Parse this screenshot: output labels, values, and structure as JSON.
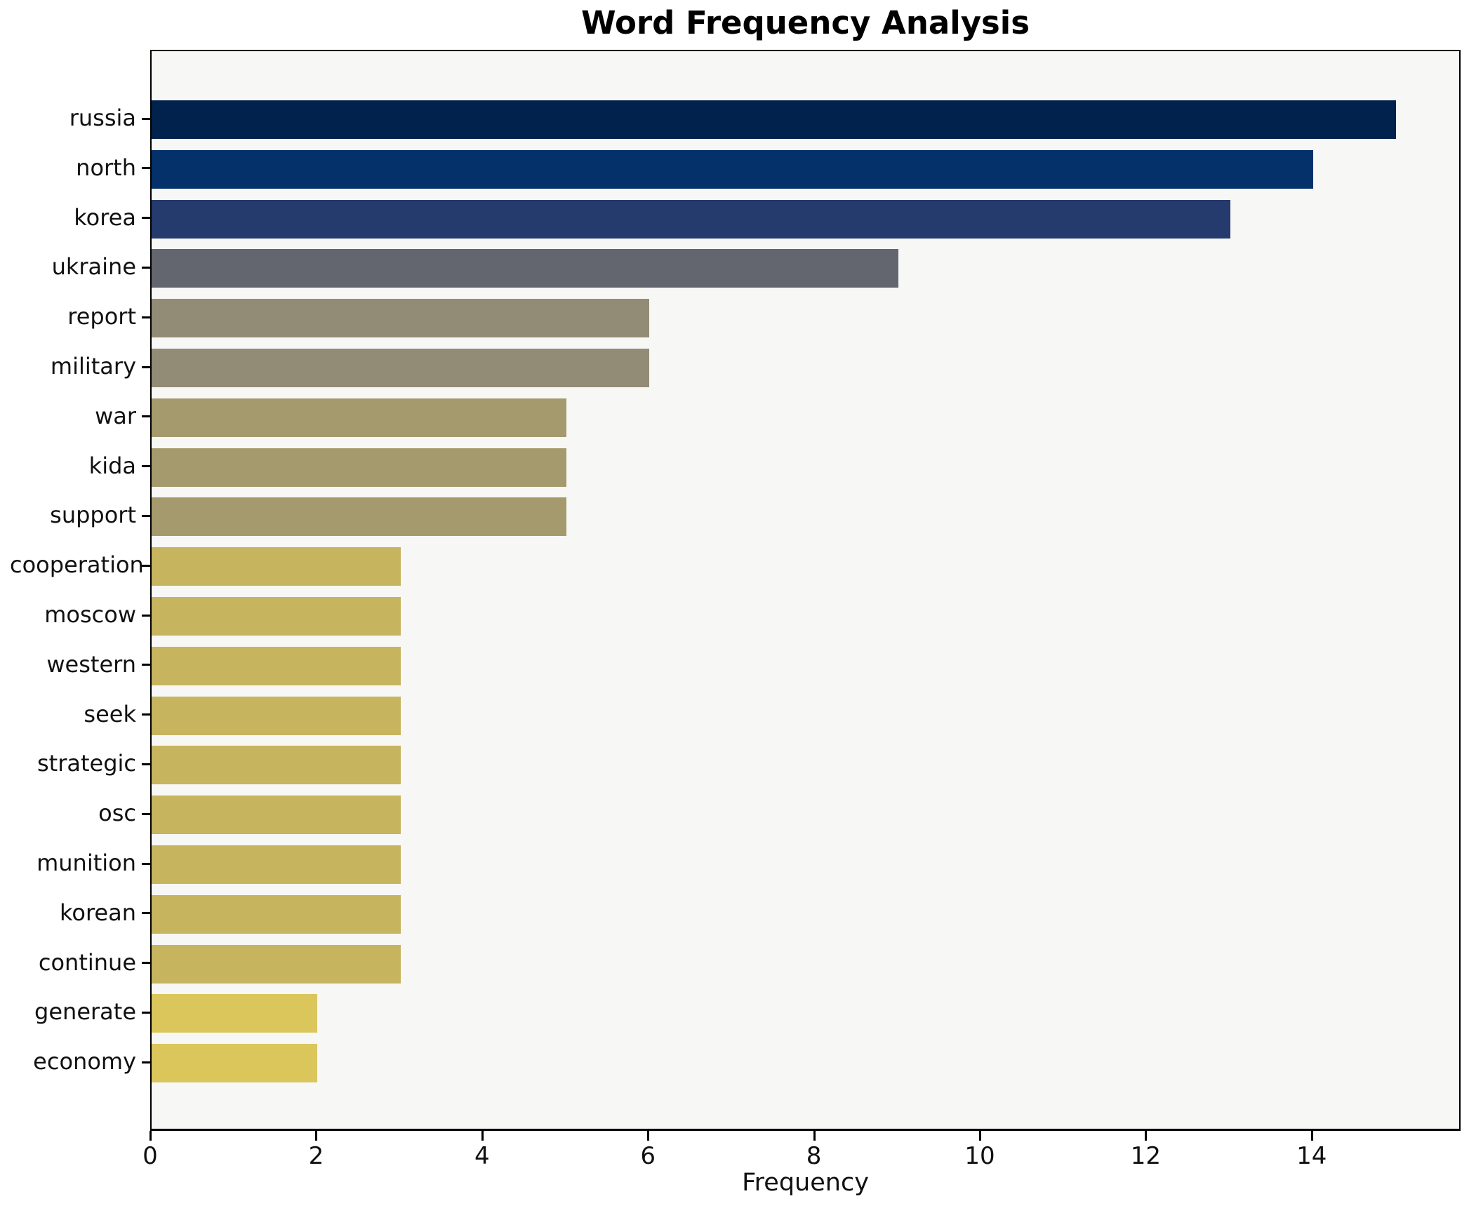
{
  "chart_data": {
    "type": "bar",
    "orientation": "horizontal",
    "title": "Word Frequency Analysis",
    "xlabel": "Frequency",
    "ylabel": "",
    "categories": [
      "russia",
      "north",
      "korea",
      "ukraine",
      "report",
      "military",
      "war",
      "kida",
      "support",
      "cooperation",
      "moscow",
      "western",
      "seek",
      "strategic",
      "osc",
      "munition",
      "korean",
      "continue",
      "generate",
      "economy"
    ],
    "values": [
      15,
      14,
      13,
      9,
      6,
      6,
      5,
      5,
      5,
      3,
      3,
      3,
      3,
      3,
      3,
      3,
      3,
      3,
      2,
      2
    ],
    "bar_colors": [
      "#02224e",
      "#05316b",
      "#253b6d",
      "#64666f",
      "#928c77",
      "#928c77",
      "#a49a6d",
      "#a49a6d",
      "#a49a6d",
      "#c7b45e",
      "#c7b45e",
      "#c7b45e",
      "#c7b45e",
      "#c7b45e",
      "#c7b45e",
      "#c7b45e",
      "#c7b45e",
      "#c7b45e",
      "#dbc65c",
      "#dbc65c"
    ],
    "x_ticks": [
      0,
      2,
      4,
      6,
      8,
      10,
      12,
      14
    ],
    "xlim": [
      0,
      15.8
    ],
    "grid": false,
    "legend": "none",
    "plot_bg": "#f7f7f5",
    "figure_bg": "#ffffff",
    "colormap": "cividis"
  }
}
